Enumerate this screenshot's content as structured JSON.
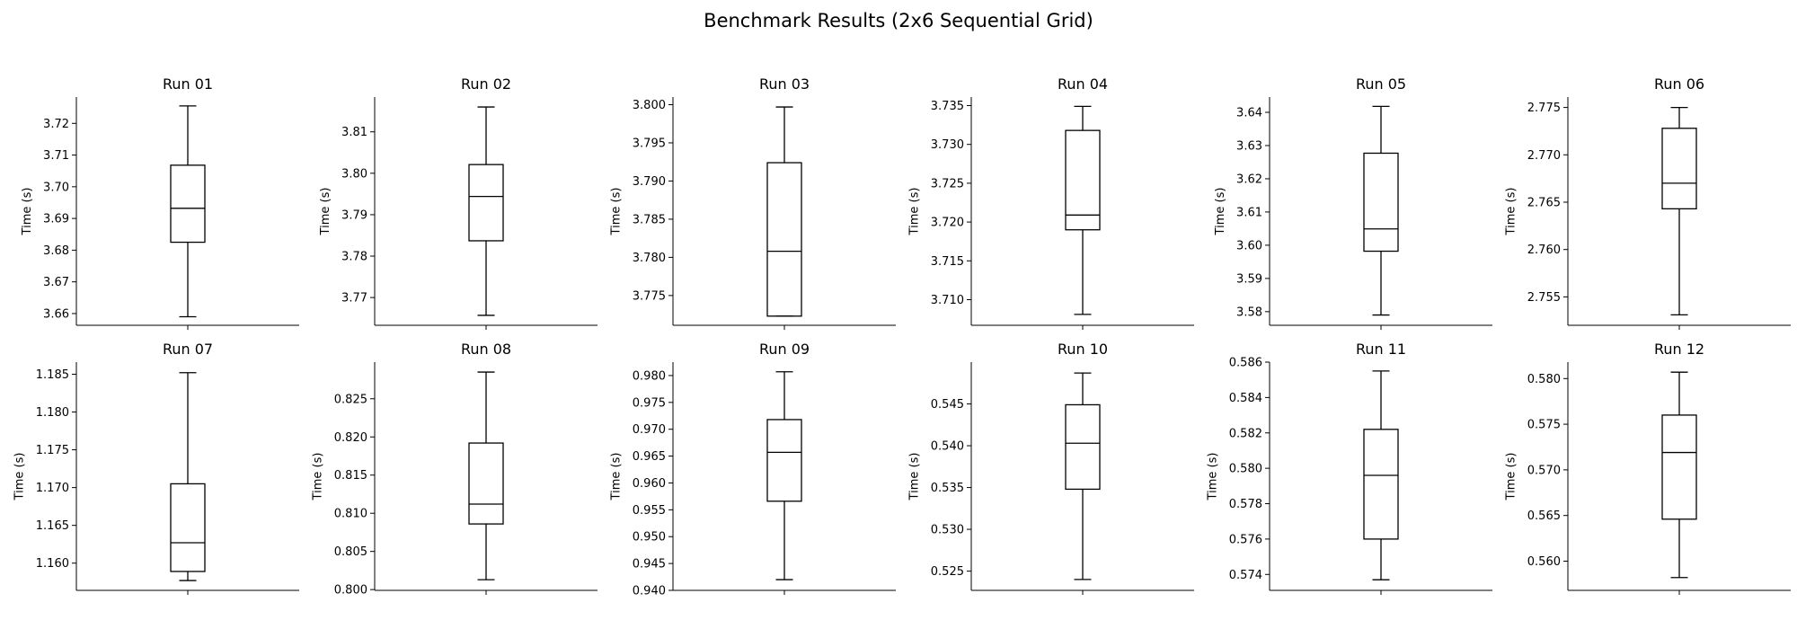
{
  "title": "Benchmark Results (2x6 Sequential Grid)",
  "chart_data": [
    {
      "type": "box",
      "title": "Run 01",
      "ylabel": "Time (s)",
      "ylim": [
        3.6563,
        3.7283
      ],
      "yticks": [
        "3.66",
        "3.67",
        "3.68",
        "3.69",
        "3.70",
        "3.71",
        "3.72"
      ],
      "tick_values": [
        3.66,
        3.67,
        3.68,
        3.69,
        3.7,
        3.71,
        3.72
      ],
      "whisker_low": 3.659,
      "q1": 3.6825,
      "median": 3.6932,
      "q3": 3.7068,
      "whisker_high": 3.7255
    },
    {
      "type": "box",
      "title": "Run 02",
      "ylabel": "Time (s)",
      "ylim": [
        3.7633,
        3.8184
      ],
      "yticks": [
        "3.77",
        "3.78",
        "3.79",
        "3.80",
        "3.81"
      ],
      "tick_values": [
        3.77,
        3.78,
        3.79,
        3.8,
        3.81
      ],
      "whisker_low": 3.7657,
      "q1": 3.7837,
      "median": 3.7944,
      "q3": 3.8021,
      "whisker_high": 3.816
    },
    {
      "type": "box",
      "title": "Run 03",
      "ylabel": "Time (s)",
      "ylim": [
        3.7711,
        3.801
      ],
      "yticks": [
        "3.775",
        "3.780",
        "3.785",
        "3.790",
        "3.795",
        "3.800"
      ],
      "tick_values": [
        3.775,
        3.78,
        3.785,
        3.79,
        3.795,
        3.8
      ],
      "whisker_low": 3.7723,
      "q1": 3.7723,
      "median": 3.7808,
      "q3": 3.7924,
      "whisker_high": 3.7997
    },
    {
      "type": "box",
      "title": "Run 04",
      "ylabel": "Time (s)",
      "ylim": [
        3.7067,
        3.7361
      ],
      "yticks": [
        "3.710",
        "3.715",
        "3.720",
        "3.725",
        "3.730",
        "3.735"
      ],
      "tick_values": [
        3.71,
        3.715,
        3.72,
        3.725,
        3.73,
        3.735
      ],
      "whisker_low": 3.7081,
      "q1": 3.719,
      "median": 3.7209,
      "q3": 3.7318,
      "whisker_high": 3.7349
    },
    {
      "type": "box",
      "title": "Run 05",
      "ylabel": "Time (s)",
      "ylim": [
        3.5759,
        3.6446
      ],
      "yticks": [
        "3.58",
        "3.59",
        "3.60",
        "3.61",
        "3.62",
        "3.63",
        "3.64"
      ],
      "tick_values": [
        3.58,
        3.59,
        3.6,
        3.61,
        3.62,
        3.63,
        3.64
      ],
      "whisker_low": 3.579,
      "q1": 3.5982,
      "median": 3.6049,
      "q3": 3.6277,
      "whisker_high": 3.6418
    },
    {
      "type": "box",
      "title": "Run 06",
      "ylabel": "Time (s)",
      "ylim": [
        2.752,
        2.7761
      ],
      "yticks": [
        "2.755",
        "2.760",
        "2.765",
        "2.770",
        "2.775"
      ],
      "tick_values": [
        2.755,
        2.76,
        2.765,
        2.77,
        2.775
      ],
      "whisker_low": 2.7531,
      "q1": 2.7643,
      "median": 2.767,
      "q3": 2.7728,
      "whisker_high": 2.775
    },
    {
      "type": "box",
      "title": "Run 07",
      "ylabel": "Time (s)",
      "ylim": [
        1.1564,
        1.1866
      ],
      "yticks": [
        "1.160",
        "1.165",
        "1.170",
        "1.175",
        "1.180",
        "1.185"
      ],
      "tick_values": [
        1.16,
        1.165,
        1.17,
        1.175,
        1.18,
        1.185
      ],
      "whisker_low": 1.1577,
      "q1": 1.1589,
      "median": 1.1627,
      "q3": 1.1705,
      "whisker_high": 1.1852
    },
    {
      "type": "box",
      "title": "Run 08",
      "ylabel": "Time (s)",
      "ylim": [
        0.7999,
        0.8298
      ],
      "yticks": [
        "0.800",
        "0.805",
        "0.810",
        "0.815",
        "0.820",
        "0.825"
      ],
      "tick_values": [
        0.8,
        0.805,
        0.81,
        0.815,
        0.82,
        0.825
      ],
      "whisker_low": 0.8013,
      "q1": 0.8086,
      "median": 0.8112,
      "q3": 0.8192,
      "whisker_high": 0.8285
    },
    {
      "type": "box",
      "title": "Run 09",
      "ylabel": "Time (s)",
      "ylim": [
        0.94,
        0.9825
      ],
      "yticks": [
        "0.940",
        "0.945",
        "0.950",
        "0.955",
        "0.960",
        "0.965",
        "0.970",
        "0.975",
        "0.980"
      ],
      "tick_values": [
        0.94,
        0.945,
        0.95,
        0.955,
        0.96,
        0.965,
        0.97,
        0.975,
        0.98
      ],
      "whisker_low": 0.942,
      "q1": 0.9566,
      "median": 0.9657,
      "q3": 0.9718,
      "whisker_high": 0.9807
    },
    {
      "type": "box",
      "title": "Run 10",
      "ylabel": "Time (s)",
      "ylim": [
        0.5227,
        0.55
      ],
      "yticks": [
        "0.525",
        "0.530",
        "0.535",
        "0.540",
        "0.545"
      ],
      "tick_values": [
        0.525,
        0.53,
        0.535,
        0.54,
        0.545
      ],
      "whisker_low": 0.524,
      "q1": 0.5348,
      "median": 0.5403,
      "q3": 0.5449,
      "whisker_high": 0.5487
    },
    {
      "type": "box",
      "title": "Run 11",
      "ylabel": "Time (s)",
      "ylim": [
        0.5731,
        0.586
      ],
      "yticks": [
        "0.574",
        "0.576",
        "0.578",
        "0.580",
        "0.582",
        "0.584",
        "0.586"
      ],
      "tick_values": [
        0.574,
        0.576,
        0.578,
        0.58,
        0.582,
        0.584,
        0.586
      ],
      "whisker_low": 0.5737,
      "q1": 0.576,
      "median": 0.5796,
      "q3": 0.5822,
      "whisker_high": 0.5855
    },
    {
      "type": "box",
      "title": "Run 12",
      "ylabel": "Time (s)",
      "ylim": [
        0.5568,
        0.5818
      ],
      "yticks": [
        "0.560",
        "0.565",
        "0.570",
        "0.575",
        "0.580"
      ],
      "tick_values": [
        0.56,
        0.565,
        0.57,
        0.575,
        0.58
      ],
      "whisker_low": 0.5582,
      "q1": 0.5646,
      "median": 0.5719,
      "q3": 0.576,
      "whisker_high": 0.5807
    }
  ]
}
